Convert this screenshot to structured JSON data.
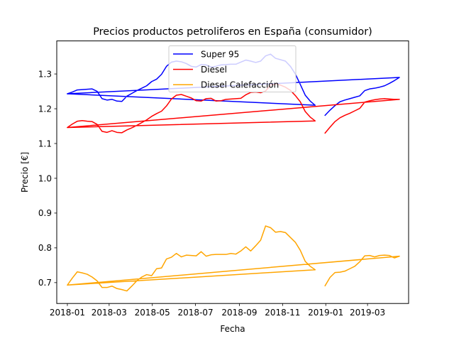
{
  "chart_data": {
    "type": "line",
    "title": "Precios productos petroliferos en España (consumidor)",
    "xlabel": "Fecha",
    "ylabel": "Precio [€]",
    "xlim": [
      "2017-12-17",
      "2019-04-28"
    ],
    "ylim": [
      0.64,
      1.395
    ],
    "xticks": [
      "2018-01",
      "2018-03",
      "2018-05",
      "2018-07",
      "2018-09",
      "2018-11",
      "2019-01",
      "2019-03"
    ],
    "yticks": [
      0.7,
      0.8,
      0.9,
      1.0,
      1.1,
      1.2,
      1.3
    ],
    "ytick_labels": [
      "0.7",
      "0.8",
      "0.9",
      "1.0",
      "1.1",
      "1.2",
      "1.3"
    ],
    "grid": false,
    "legend": "upper-center",
    "series": [
      {
        "name": "Super 95",
        "color": "#0000ff",
        "points": [
          [
            "2018-01-01",
            1.243
          ],
          [
            "2018-01-08",
            1.248
          ],
          [
            "2018-01-15",
            1.254
          ],
          [
            "2018-01-22",
            1.255
          ],
          [
            "2018-01-29",
            1.256
          ],
          [
            "2018-02-05",
            1.257
          ],
          [
            "2018-02-12",
            1.25
          ],
          [
            "2018-02-19",
            1.229
          ],
          [
            "2018-02-26",
            1.225
          ],
          [
            "2018-03-05",
            1.227
          ],
          [
            "2018-03-12",
            1.222
          ],
          [
            "2018-03-19",
            1.221
          ],
          [
            "2018-03-26",
            1.236
          ],
          [
            "2018-04-02",
            1.244
          ],
          [
            "2018-04-09",
            1.252
          ],
          [
            "2018-04-16",
            1.259
          ],
          [
            "2018-04-23",
            1.266
          ],
          [
            "2018-04-30",
            1.278
          ],
          [
            "2018-05-07",
            1.285
          ],
          [
            "2018-05-14",
            1.299
          ],
          [
            "2018-05-21",
            1.322
          ],
          [
            "2018-05-28",
            1.334
          ],
          [
            "2018-06-04",
            1.337
          ],
          [
            "2018-06-11",
            1.335
          ],
          [
            "2018-06-18",
            1.33
          ],
          [
            "2018-06-25",
            1.322
          ],
          [
            "2018-07-02",
            1.32
          ],
          [
            "2018-07-09",
            1.327
          ],
          [
            "2018-07-16",
            1.326
          ],
          [
            "2018-07-23",
            1.32
          ],
          [
            "2018-07-30",
            1.322
          ],
          [
            "2018-08-06",
            1.326
          ],
          [
            "2018-08-13",
            1.327
          ],
          [
            "2018-08-20",
            1.328
          ],
          [
            "2018-08-27",
            1.328
          ],
          [
            "2018-09-03",
            1.334
          ],
          [
            "2018-09-10",
            1.34
          ],
          [
            "2018-09-17",
            1.337
          ],
          [
            "2018-09-24",
            1.333
          ],
          [
            "2018-10-01",
            1.337
          ],
          [
            "2018-10-08",
            1.352
          ],
          [
            "2018-10-15",
            1.357
          ],
          [
            "2018-10-22",
            1.345
          ],
          [
            "2018-10-29",
            1.341
          ],
          [
            "2018-11-05",
            1.337
          ],
          [
            "2018-11-12",
            1.322
          ],
          [
            "2018-11-19",
            1.3
          ],
          [
            "2018-11-26",
            1.27
          ],
          [
            "2018-12-03",
            1.239
          ],
          [
            "2018-12-10",
            1.222
          ],
          [
            "2018-12-17",
            1.21
          ],
          [
            "2018-01-01",
            1.243
          ],
          [
            "2019-04-15",
            1.29
          ],
          [
            "2019-04-08",
            1.281
          ],
          [
            "2019-04-01",
            1.273
          ],
          [
            "2019-03-25",
            1.266
          ],
          [
            "2019-03-18",
            1.262
          ],
          [
            "2019-03-11",
            1.259
          ],
          [
            "2019-03-04",
            1.257
          ],
          [
            "2019-02-25",
            1.252
          ],
          [
            "2019-02-18",
            1.237
          ],
          [
            "2019-02-11",
            1.233
          ],
          [
            "2019-02-04",
            1.229
          ],
          [
            "2019-01-28",
            1.225
          ],
          [
            "2019-01-21",
            1.22
          ],
          [
            "2019-01-14",
            1.209
          ],
          [
            "2019-01-07",
            1.196
          ],
          [
            "2018-12-31",
            1.181
          ]
        ]
      },
      {
        "name": "Diesel",
        "color": "#ff0000",
        "points": [
          [
            "2018-01-01",
            1.146
          ],
          [
            "2018-01-08",
            1.156
          ],
          [
            "2018-01-15",
            1.164
          ],
          [
            "2018-01-22",
            1.166
          ],
          [
            "2018-01-29",
            1.164
          ],
          [
            "2018-02-05",
            1.163
          ],
          [
            "2018-02-12",
            1.155
          ],
          [
            "2018-02-19",
            1.135
          ],
          [
            "2018-02-26",
            1.132
          ],
          [
            "2018-03-05",
            1.137
          ],
          [
            "2018-03-12",
            1.132
          ],
          [
            "2018-03-19",
            1.131
          ],
          [
            "2018-03-26",
            1.139
          ],
          [
            "2018-04-02",
            1.145
          ],
          [
            "2018-04-09",
            1.152
          ],
          [
            "2018-04-16",
            1.16
          ],
          [
            "2018-04-23",
            1.168
          ],
          [
            "2018-04-30",
            1.178
          ],
          [
            "2018-05-07",
            1.186
          ],
          [
            "2018-05-14",
            1.193
          ],
          [
            "2018-05-21",
            1.208
          ],
          [
            "2018-05-28",
            1.228
          ],
          [
            "2018-06-04",
            1.239
          ],
          [
            "2018-06-11",
            1.241
          ],
          [
            "2018-06-18",
            1.236
          ],
          [
            "2018-06-25",
            1.231
          ],
          [
            "2018-07-02",
            1.223
          ],
          [
            "2018-07-09",
            1.222
          ],
          [
            "2018-07-16",
            1.229
          ],
          [
            "2018-07-23",
            1.23
          ],
          [
            "2018-07-30",
            1.222
          ],
          [
            "2018-08-06",
            1.223
          ],
          [
            "2018-08-13",
            1.227
          ],
          [
            "2018-08-20",
            1.228
          ],
          [
            "2018-08-27",
            1.229
          ],
          [
            "2018-09-03",
            1.23
          ],
          [
            "2018-09-10",
            1.24
          ],
          [
            "2018-09-17",
            1.247
          ],
          [
            "2018-09-24",
            1.248
          ],
          [
            "2018-10-01",
            1.246
          ],
          [
            "2018-10-08",
            1.251
          ],
          [
            "2018-10-15",
            1.268
          ],
          [
            "2018-10-22",
            1.271
          ],
          [
            "2018-10-29",
            1.268
          ],
          [
            "2018-11-05",
            1.262
          ],
          [
            "2018-11-12",
            1.253
          ],
          [
            "2018-11-19",
            1.238
          ],
          [
            "2018-11-26",
            1.22
          ],
          [
            "2018-12-03",
            1.192
          ],
          [
            "2018-12-10",
            1.176
          ],
          [
            "2018-12-17",
            1.165
          ],
          [
            "2018-01-01",
            1.146
          ],
          [
            "2019-04-15",
            1.227
          ],
          [
            "2019-04-08",
            1.227
          ],
          [
            "2019-04-01",
            1.228
          ],
          [
            "2019-03-25",
            1.229
          ],
          [
            "2019-03-18",
            1.228
          ],
          [
            "2019-03-11",
            1.226
          ],
          [
            "2019-03-04",
            1.223
          ],
          [
            "2019-02-25",
            1.219
          ],
          [
            "2019-02-18",
            1.201
          ],
          [
            "2019-02-11",
            1.194
          ],
          [
            "2019-02-04",
            1.187
          ],
          [
            "2019-01-28",
            1.181
          ],
          [
            "2019-01-21",
            1.174
          ],
          [
            "2019-01-14",
            1.163
          ],
          [
            "2019-01-07",
            1.147
          ],
          [
            "2018-12-31",
            1.13
          ]
        ]
      },
      {
        "name": "Diesel Calefacción",
        "color": "#ffa500",
        "points": [
          [
            "2018-01-01",
            0.693
          ],
          [
            "2018-01-08",
            0.713
          ],
          [
            "2018-01-15",
            0.731
          ],
          [
            "2018-01-22",
            0.728
          ],
          [
            "2018-01-29",
            0.724
          ],
          [
            "2018-02-05",
            0.716
          ],
          [
            "2018-02-12",
            0.705
          ],
          [
            "2018-02-19",
            0.686
          ],
          [
            "2018-02-26",
            0.686
          ],
          [
            "2018-03-05",
            0.69
          ],
          [
            "2018-03-12",
            0.683
          ],
          [
            "2018-03-19",
            0.68
          ],
          [
            "2018-03-26",
            0.676
          ],
          [
            "2018-04-02",
            0.69
          ],
          [
            "2018-04-09",
            0.705
          ],
          [
            "2018-04-16",
            0.716
          ],
          [
            "2018-04-23",
            0.723
          ],
          [
            "2018-04-30",
            0.72
          ],
          [
            "2018-05-07",
            0.74
          ],
          [
            "2018-05-14",
            0.742
          ],
          [
            "2018-05-21",
            0.768
          ],
          [
            "2018-05-28",
            0.773
          ],
          [
            "2018-06-04",
            0.784
          ],
          [
            "2018-06-11",
            0.774
          ],
          [
            "2018-06-18",
            0.779
          ],
          [
            "2018-06-25",
            0.778
          ],
          [
            "2018-07-02",
            0.777
          ],
          [
            "2018-07-09",
            0.789
          ],
          [
            "2018-07-16",
            0.776
          ],
          [
            "2018-07-23",
            0.78
          ],
          [
            "2018-07-30",
            0.781
          ],
          [
            "2018-08-06",
            0.781
          ],
          [
            "2018-08-13",
            0.781
          ],
          [
            "2018-08-20",
            0.784
          ],
          [
            "2018-08-27",
            0.782
          ],
          [
            "2018-09-03",
            0.791
          ],
          [
            "2018-09-10",
            0.803
          ],
          [
            "2018-09-17",
            0.791
          ],
          [
            "2018-09-24",
            0.806
          ],
          [
            "2018-10-01",
            0.822
          ],
          [
            "2018-10-08",
            0.863
          ],
          [
            "2018-10-15",
            0.858
          ],
          [
            "2018-10-22",
            0.845
          ],
          [
            "2018-10-29",
            0.847
          ],
          [
            "2018-11-05",
            0.844
          ],
          [
            "2018-11-12",
            0.83
          ],
          [
            "2018-11-19",
            0.816
          ],
          [
            "2018-11-26",
            0.793
          ],
          [
            "2018-12-03",
            0.761
          ],
          [
            "2018-12-10",
            0.747
          ],
          [
            "2018-12-17",
            0.737
          ],
          [
            "2018-01-01",
            0.693
          ],
          [
            "2019-04-15",
            0.776
          ],
          [
            "2019-04-08",
            0.771
          ],
          [
            "2019-04-01",
            0.778
          ],
          [
            "2019-03-25",
            0.779
          ],
          [
            "2019-03-18",
            0.778
          ],
          [
            "2019-03-11",
            0.774
          ],
          [
            "2019-03-04",
            0.778
          ],
          [
            "2019-02-25",
            0.777
          ],
          [
            "2019-02-18",
            0.76
          ],
          [
            "2019-02-11",
            0.747
          ],
          [
            "2019-02-04",
            0.74
          ],
          [
            "2019-01-28",
            0.733
          ],
          [
            "2019-01-21",
            0.73
          ],
          [
            "2019-01-14",
            0.729
          ],
          [
            "2019-01-07",
            0.715
          ],
          [
            "2018-12-31",
            0.691
          ]
        ]
      }
    ]
  }
}
